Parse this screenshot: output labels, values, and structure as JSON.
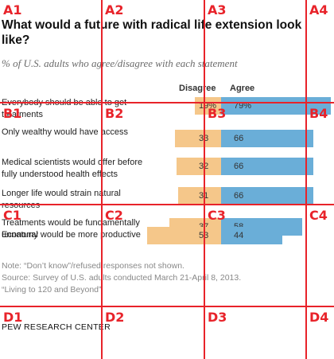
{
  "chart_data": {
    "type": "bar",
    "title": "What would a future with radical life extension look like?",
    "subtitle": "% of U.S. adults who agree/disagree with each statement",
    "column_headers": {
      "disagree": "Disagree",
      "agree": "Agree"
    },
    "categories": [
      "Everybody should be able to get treatments",
      "Only wealthy would have access",
      "Medical scientists would offer before fully understood health effects",
      "Longer life would strain natural resources",
      "Treatments would be fundamentally unnatural",
      "Economy would be more productive"
    ],
    "series": [
      {
        "name": "Disagree",
        "values": [
          19,
          33,
          32,
          31,
          37,
          53
        ],
        "labels": [
          "19%",
          "33",
          "32",
          "31",
          "37",
          "53"
        ]
      },
      {
        "name": "Agree",
        "values": [
          79,
          66,
          66,
          66,
          58,
          44
        ],
        "labels": [
          "79%",
          "66",
          "66",
          "66",
          "58",
          "44"
        ]
      }
    ],
    "colors": {
      "disagree": "#f5c78a",
      "agree": "#6aaed8"
    }
  },
  "notes": {
    "note": "Note: “Don’t know”/refused responses not shown.",
    "source": "Source: Survey of U.S. adults conducted March 21-April 8, 2013.",
    "report": "“Living to 120 and Beyond”"
  },
  "brand": "PEW RESEARCH CENTER",
  "grid_overlay": {
    "color": "#e8232a",
    "labels": [
      "A1",
      "A2",
      "A3",
      "A4",
      "B1",
      "B2",
      "B3",
      "B4",
      "C1",
      "C2",
      "C3",
      "C4",
      "D1",
      "D2",
      "D3",
      "D4"
    ]
  }
}
